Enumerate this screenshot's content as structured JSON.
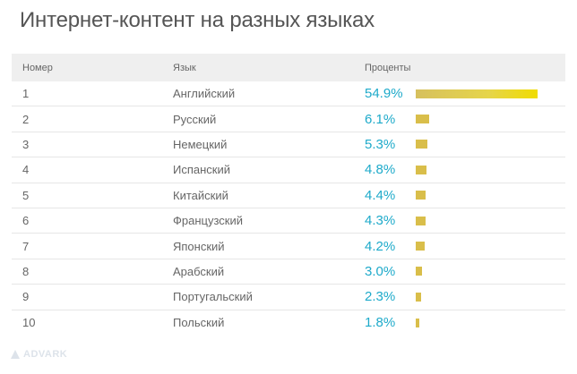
{
  "title": "Интернет-контент на разных языках",
  "table": {
    "headers": {
      "number": "Номер",
      "language": "Язык",
      "percent": "Проценты"
    }
  },
  "chart_data": {
    "type": "bar",
    "orientation": "horizontal",
    "title": "Интернет-контент на разных языках",
    "categories": [
      "Английский",
      "Русский",
      "Немецкий",
      "Испанский",
      "Китайский",
      "Французский",
      "Японский",
      "Арабский",
      "Португальский",
      "Польский"
    ],
    "ranks": [
      "1",
      "2",
      "3",
      "4",
      "5",
      "6",
      "7",
      "8",
      "9",
      "10"
    ],
    "values": [
      54.9,
      6.1,
      5.3,
      4.8,
      4.4,
      4.3,
      4.2,
      3.0,
      2.3,
      1.8
    ],
    "labels": [
      "54.9%",
      "6.1%",
      "5.3%",
      "4.8%",
      "4.4%",
      "4.3%",
      "4.2%",
      "3.0%",
      "2.3%",
      "1.8%"
    ],
    "unit": "%",
    "xlim": [
      0,
      54.9
    ],
    "colors": {
      "bar": "#d9be4a",
      "top_bar_end": "#f0dc00",
      "value_text": "#1eaaca",
      "header_bg": "#efefef"
    }
  },
  "watermark": {
    "text": "ADVARK",
    "icon": "advark-logo-icon"
  }
}
